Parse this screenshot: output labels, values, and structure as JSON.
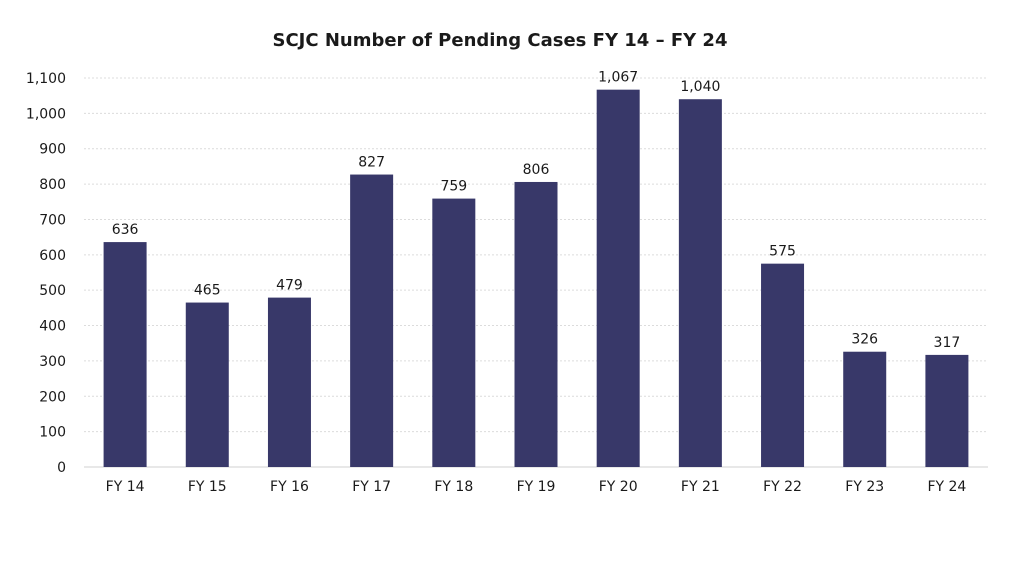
{
  "chart_data": {
    "type": "bar",
    "title": "SCJC Number of Pending Cases FY 14 – FY 24",
    "xlabel": "",
    "ylabel": "",
    "categories": [
      "FY 14",
      "FY 15",
      "FY 16",
      "FY 17",
      "FY 18",
      "FY 19",
      "FY 20",
      "FY 21",
      "FY 22",
      "FY 23",
      "FY 24"
    ],
    "values": [
      636,
      465,
      479,
      827,
      759,
      806,
      1067,
      1040,
      575,
      326,
      317
    ],
    "value_labels": [
      "636",
      "465",
      "479",
      "827",
      "759",
      "806",
      "1,067",
      "1,040",
      "575",
      "326",
      "317"
    ],
    "ylim": [
      0,
      1100
    ],
    "yticks": [
      0,
      100,
      200,
      300,
      400,
      500,
      600,
      700,
      800,
      900,
      1000,
      1100
    ],
    "ytick_labels": [
      "0",
      "100",
      "200",
      "300",
      "400",
      "500",
      "600",
      "700",
      "800",
      "900",
      "1,000",
      "1,100"
    ],
    "grid": true,
    "legend": "none",
    "bar_color": "#383869"
  }
}
